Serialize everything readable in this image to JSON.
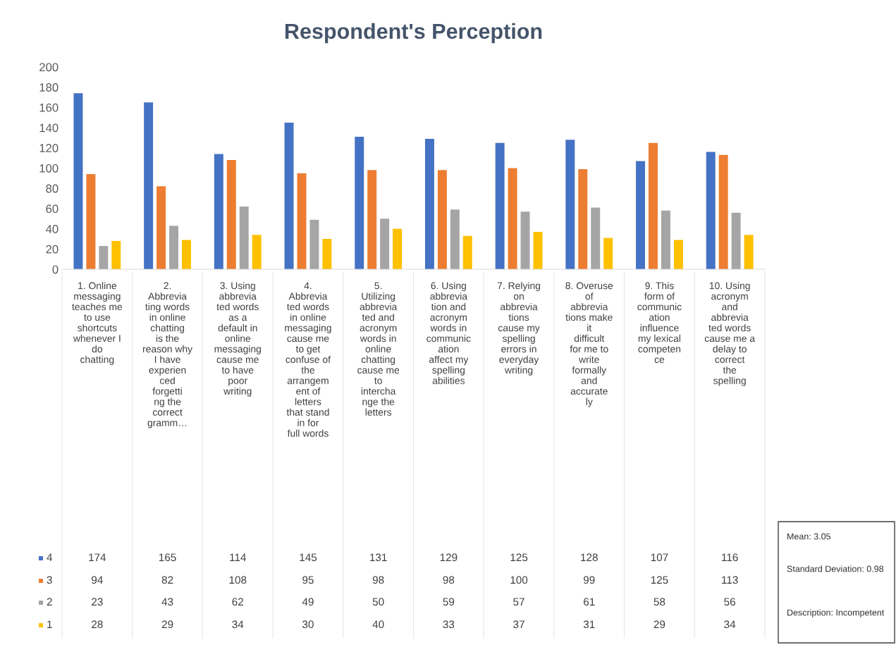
{
  "chart_data": {
    "type": "bar",
    "title": "Respondent's Perception",
    "categories": [
      "1. Online messaging teaches me to use shortcuts whenever I do chatting",
      "2. Abbreviating words in online chatting is the reason why I have experienced forgetting the correct gramm…",
      "3. Using abbreviated words as a default in online messaging cause me to have poor writing",
      "4. Abbreviated words in online messaging cause me to get confuse of the arrangement of letters that stand in for full words",
      "5. Utilizing abbreviated and acronym words in online chatting cause me to interchange the letters",
      "6. Using abbreviation and acronym words in communication affect my spelling abilities",
      "7. Relying on abbreviations cause my spelling errors in everyday writing",
      "8. Overuse of abbreviations make it difficult for me to write formally and accurately",
      "9. This form of communication influence my lexical competence",
      "10. Using acronym and abbreviated words cause me a delay to correct the spelling"
    ],
    "series": [
      {
        "name": "4",
        "color": "#4472c4",
        "values": [
          174,
          165,
          114,
          145,
          131,
          129,
          125,
          128,
          107,
          116
        ]
      },
      {
        "name": "3",
        "color": "#ed7d31",
        "values": [
          94,
          82,
          108,
          95,
          98,
          98,
          100,
          99,
          125,
          113
        ]
      },
      {
        "name": "2",
        "color": "#a5a5a5",
        "values": [
          23,
          43,
          62,
          49,
          50,
          59,
          57,
          61,
          58,
          56
        ]
      },
      {
        "name": "1",
        "color": "#ffc000",
        "values": [
          28,
          29,
          34,
          30,
          40,
          33,
          37,
          31,
          29,
          34
        ]
      }
    ],
    "ylim": [
      0,
      200
    ],
    "yticks": [
      0,
      20,
      40,
      60,
      80,
      100,
      120,
      140,
      160,
      180,
      200
    ],
    "grid": false,
    "legend": "bottom",
    "data_labels": true,
    "annotations": [
      "Mean: 3.05",
      "Standard Deviation: 0.98",
      "Description: Incompetent"
    ]
  }
}
